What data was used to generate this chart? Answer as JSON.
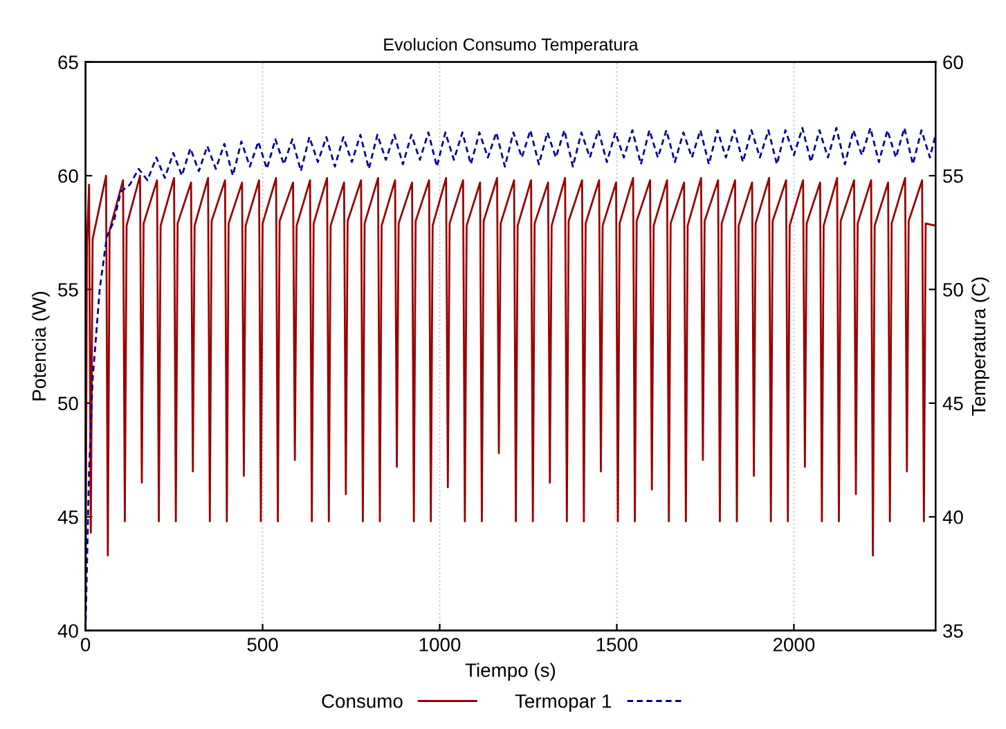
{
  "chart_data": {
    "type": "line",
    "title": "Evolucion Consumo Temperatura",
    "xlabel": "Tiempo (s)",
    "ylabel": "Potencia (W)",
    "y2label": "Temperatura (C)",
    "xlim": [
      0,
      2400
    ],
    "xticks": [
      0,
      500,
      1000,
      1500,
      2000
    ],
    "ylim": [
      40,
      65
    ],
    "yticks": [
      40,
      45,
      50,
      55,
      60,
      65
    ],
    "y2lim": [
      35,
      60
    ],
    "y2ticks": [
      35,
      40,
      45,
      50,
      55,
      60
    ],
    "grid": "x",
    "legend": "bottom",
    "series": [
      {
        "name": "Consumo",
        "color": "#990000",
        "line_style": "solid",
        "x": [
          0,
          4,
          10,
          15,
          20,
          58,
          63,
          68,
          106,
          111,
          116,
          154,
          159,
          164,
          202,
          207,
          212,
          250,
          255,
          260,
          298,
          303,
          308,
          346,
          351,
          356,
          394,
          399,
          404,
          442,
          447,
          452,
          490,
          495,
          500,
          538,
          543,
          548,
          586,
          591,
          596,
          634,
          639,
          644,
          682,
          687,
          692,
          730,
          735,
          740,
          778,
          783,
          788,
          826,
          831,
          836,
          874,
          879,
          884,
          922,
          927,
          932,
          970,
          975,
          980,
          1018,
          1023,
          1028,
          1066,
          1071,
          1076,
          1114,
          1119,
          1124,
          1162,
          1167,
          1172,
          1210,
          1215,
          1220,
          1258,
          1263,
          1268,
          1306,
          1311,
          1316,
          1354,
          1359,
          1364,
          1402,
          1407,
          1412,
          1450,
          1455,
          1460,
          1498,
          1503,
          1508,
          1546,
          1551,
          1556,
          1594,
          1599,
          1604,
          1642,
          1647,
          1652,
          1690,
          1695,
          1700,
          1738,
          1743,
          1748,
          1786,
          1791,
          1796,
          1834,
          1839,
          1844,
          1882,
          1887,
          1892,
          1930,
          1935,
          1940,
          1978,
          1983,
          1988,
          2026,
          2031,
          2036,
          2074,
          2079,
          2084,
          2122,
          2127,
          2132,
          2170,
          2175,
          2180,
          2218,
          2223,
          2228,
          2266,
          2271,
          2276,
          2314,
          2319,
          2324,
          2362,
          2367,
          2372,
          2400
        ],
        "values": [
          40,
          57.0,
          59.6,
          44.3,
          57.2,
          60.0,
          43.3,
          57.6,
          59.8,
          44.8,
          57.8,
          60.0,
          46.5,
          57.9,
          59.8,
          44.8,
          57.8,
          59.9,
          44.8,
          57.9,
          59.7,
          47.0,
          57.8,
          59.9,
          44.8,
          58.0,
          59.8,
          44.8,
          57.9,
          59.7,
          46.8,
          57.8,
          59.8,
          44.8,
          57.9,
          59.9,
          44.8,
          58.0,
          59.7,
          47.5,
          57.8,
          59.8,
          44.8,
          57.9,
          59.9,
          44.8,
          57.8,
          59.7,
          46.0,
          58.0,
          59.8,
          44.8,
          57.9,
          59.9,
          44.8,
          57.8,
          59.8,
          47.2,
          57.9,
          59.7,
          44.8,
          58.0,
          59.8,
          44.8,
          57.8,
          59.9,
          46.3,
          57.9,
          59.8,
          44.8,
          57.8,
          59.7,
          44.8,
          58.0,
          59.9,
          47.8,
          57.9,
          59.8,
          44.8,
          57.8,
          59.8,
          44.8,
          57.9,
          59.7,
          46.5,
          57.8,
          59.9,
          44.8,
          58.0,
          59.8,
          44.8,
          57.9,
          59.8,
          47.0,
          57.8,
          59.7,
          44.8,
          57.9,
          59.9,
          44.8,
          58.0,
          59.8,
          46.2,
          57.8,
          59.8,
          44.8,
          57.9,
          59.7,
          44.8,
          57.8,
          59.9,
          47.5,
          58.0,
          59.8,
          44.8,
          57.9,
          59.8,
          44.8,
          57.8,
          59.7,
          46.8,
          57.9,
          59.9,
          44.8,
          58.0,
          59.8,
          44.8,
          57.8,
          59.8,
          47.2,
          57.9,
          59.7,
          44.8,
          57.8,
          59.9,
          44.8,
          58.0,
          59.8,
          46.0,
          57.9,
          59.8,
          43.3,
          57.8,
          59.7,
          44.8,
          57.9,
          59.9,
          47.0,
          58.0,
          59.8,
          44.8,
          57.9,
          57.8
        ]
      },
      {
        "name": "Termopar 1",
        "color": "#000099",
        "line_style": "dashed",
        "axis": "y2",
        "x": [
          0,
          10,
          20,
          40,
          60,
          80,
          100,
          125,
          150,
          175,
          200,
          224,
          248,
          272,
          296,
          320,
          344,
          368,
          392,
          416,
          440,
          464,
          488,
          512,
          536,
          560,
          584,
          608,
          632,
          656,
          680,
          704,
          728,
          752,
          776,
          800,
          824,
          848,
          872,
          896,
          920,
          944,
          968,
          992,
          1016,
          1040,
          1064,
          1088,
          1112,
          1136,
          1160,
          1184,
          1208,
          1232,
          1256,
          1280,
          1304,
          1328,
          1352,
          1376,
          1400,
          1424,
          1448,
          1472,
          1496,
          1520,
          1544,
          1568,
          1592,
          1616,
          1640,
          1664,
          1688,
          1712,
          1736,
          1760,
          1784,
          1808,
          1832,
          1856,
          1880,
          1904,
          1928,
          1952,
          1976,
          2000,
          2024,
          2048,
          2072,
          2096,
          2120,
          2144,
          2168,
          2192,
          2216,
          2240,
          2264,
          2288,
          2312,
          2336,
          2360,
          2384,
          2400
        ],
        "values": [
          35,
          42,
          46,
          50,
          52.3,
          53,
          54.3,
          54.6,
          55.3,
          54.8,
          55.8,
          54.9,
          56.0,
          55.0,
          56.2,
          55.2,
          56.3,
          55.3,
          56.4,
          55.0,
          56.5,
          55.4,
          56.5,
          55.3,
          56.6,
          55.5,
          56.6,
          55.2,
          56.7,
          55.6,
          56.7,
          55.4,
          56.7,
          55.6,
          56.8,
          55.3,
          56.8,
          55.7,
          56.8,
          55.5,
          56.8,
          55.7,
          56.9,
          55.4,
          56.9,
          55.7,
          56.9,
          55.5,
          56.9,
          55.8,
          56.9,
          55.4,
          56.9,
          55.8,
          57.0,
          55.5,
          56.9,
          55.8,
          57.0,
          55.4,
          56.9,
          55.8,
          57.0,
          55.6,
          56.9,
          55.8,
          57.0,
          55.5,
          57.0,
          55.8,
          57.0,
          55.6,
          56.9,
          55.8,
          57.0,
          55.5,
          57.0,
          55.8,
          57.0,
          55.6,
          57.0,
          55.8,
          57.0,
          55.5,
          57.0,
          55.9,
          57.1,
          55.6,
          57.0,
          55.8,
          57.1,
          55.5,
          57.0,
          55.9,
          57.1,
          55.6,
          57.0,
          55.8,
          57.1,
          55.5,
          57.0,
          55.8,
          56.8
        ]
      }
    ]
  }
}
